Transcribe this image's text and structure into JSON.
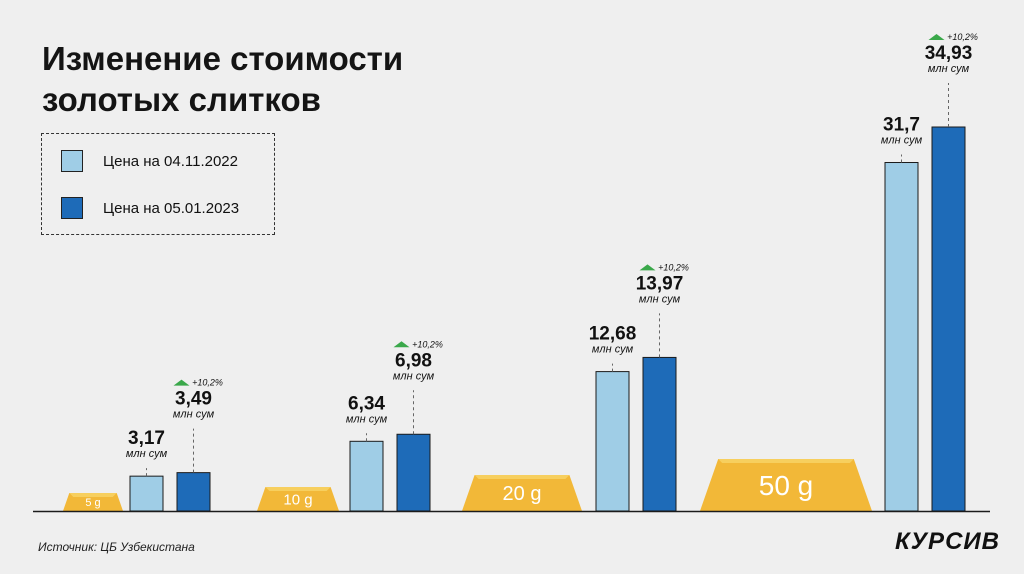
{
  "title_line1": "Изменение стоимости",
  "title_line2": "золотых слитков",
  "legend": [
    {
      "label": "Цена на 04.11.2022",
      "color": "#9fcde6"
    },
    {
      "label": "Цена на 05.01.2023",
      "color": "#1e6bb8"
    }
  ],
  "source": "Источник: ЦБ Узбекистана",
  "brand": "КУРСИВ",
  "chart_data": {
    "type": "bar",
    "categories": [
      "5 g",
      "10 g",
      "20 g",
      "50 g"
    ],
    "series": [
      {
        "name": "Цена на 04.11.2022",
        "values": [
          3.17,
          6.34,
          12.68,
          31.7
        ],
        "labels": [
          "3,17",
          "6,34",
          "12,68",
          "31,7"
        ],
        "color": "#9fcde6"
      },
      {
        "name": "Цена на 05.01.2023",
        "values": [
          3.49,
          6.98,
          13.97,
          34.93
        ],
        "labels": [
          "3,49",
          "6,98",
          "13,97",
          "34,93"
        ],
        "color": "#1e6bb8"
      }
    ],
    "unit_label": "млн сум",
    "change_labels": [
      "+10,2%",
      "+10,2%",
      "+10,2%",
      "+10,2%"
    ],
    "change_color": "#3aa84a",
    "ingot_color": "#f2b838",
    "ylim": [
      0,
      38
    ],
    "grid": false
  }
}
